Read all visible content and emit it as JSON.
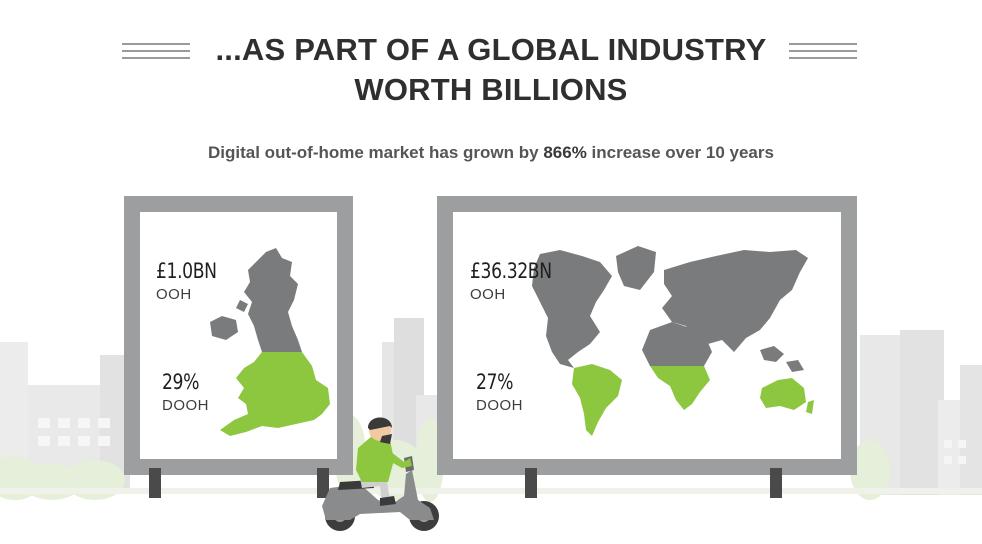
{
  "header": {
    "title_line1": "...AS PART OF A GLOBAL INDUSTRY",
    "title_line2": "WORTH BILLIONS"
  },
  "subtitle": {
    "prefix": "Digital out-of-home market has grown by ",
    "highlight": "866%",
    "suffix": " increase over 10 years"
  },
  "uk_billboard": {
    "ooh_value": "£1.0BN",
    "ooh_label": "OOH",
    "dooh_value": "29%",
    "dooh_label": "DOOH"
  },
  "world_billboard": {
    "ooh_value": "£36.32BN",
    "ooh_label": "OOH",
    "dooh_value": "27%",
    "dooh_label": "DOOH"
  },
  "colors": {
    "accent_green": "#8dc63f",
    "map_grey": "#7a7b7c",
    "frame_grey": "#9d9e9f",
    "title_text": "#2f2f2f"
  }
}
